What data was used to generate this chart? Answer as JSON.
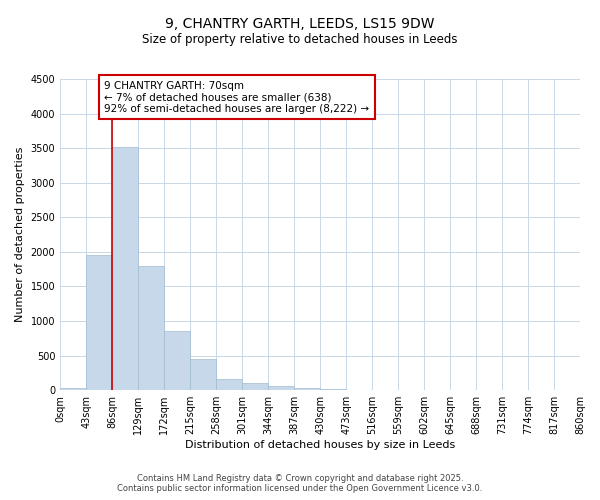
{
  "title": "9, CHANTRY GARTH, LEEDS, LS15 9DW",
  "subtitle": "Size of property relative to detached houses in Leeds",
  "xlabel": "Distribution of detached houses by size in Leeds",
  "ylabel": "Number of detached properties",
  "bar_color": "#c8d8eb",
  "bar_edge_color": "#a0bcd0",
  "bar_values": [
    30,
    1950,
    3520,
    1800,
    860,
    450,
    165,
    100,
    55,
    35,
    20,
    5,
    0,
    0,
    0,
    0,
    0,
    0,
    0,
    0
  ],
  "bin_labels": [
    "0sqm",
    "43sqm",
    "86sqm",
    "129sqm",
    "172sqm",
    "215sqm",
    "258sqm",
    "301sqm",
    "344sqm",
    "387sqm",
    "430sqm",
    "473sqm",
    "516sqm",
    "559sqm",
    "602sqm",
    "645sqm",
    "688sqm",
    "731sqm",
    "774sqm",
    "817sqm",
    "860sqm"
  ],
  "ylim": [
    0,
    4500
  ],
  "yticks": [
    0,
    500,
    1000,
    1500,
    2000,
    2500,
    3000,
    3500,
    4000,
    4500
  ],
  "property_line_x": 2.0,
  "annotation_text": "9 CHANTRY GARTH: 70sqm\n← 7% of detached houses are smaller (638)\n92% of semi-detached houses are larger (8,222) →",
  "annotation_box_color": "#ffffff",
  "annotation_box_edge": "#cc0000",
  "red_line_color": "#cc0000",
  "footer_line1": "Contains HM Land Registry data © Crown copyright and database right 2025.",
  "footer_line2": "Contains public sector information licensed under the Open Government Licence v3.0.",
  "background_color": "#ffffff",
  "grid_color": "#c8d8e8",
  "title_fontsize": 10,
  "subtitle_fontsize": 8.5,
  "axis_label_fontsize": 8,
  "tick_fontsize": 7,
  "annotation_fontsize": 7.5,
  "footer_fontsize": 6,
  "figsize": [
    6.0,
    5.0
  ],
  "dpi": 100
}
